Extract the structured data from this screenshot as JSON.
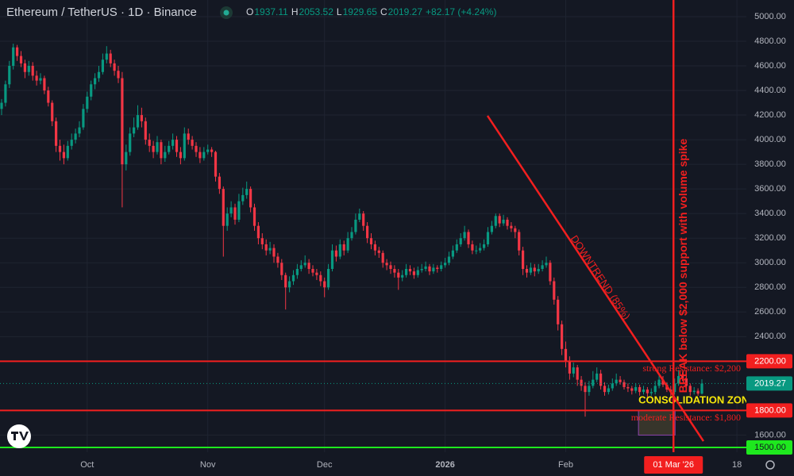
{
  "header": {
    "symbol": "Ethereum / TetherUS · 1D · Binance",
    "o_label": "O",
    "open": 1937.11,
    "h_label": "H",
    "high": 2053.52,
    "l_label": "L",
    "low": 1929.65,
    "c_label": "C",
    "close": 2019.27,
    "change": "+82.17 (+4.24%)"
  },
  "chart_data": {
    "type": "candlestick",
    "colors": {
      "up": "#089981",
      "down": "#f23645"
    },
    "xlim": [
      -0.41,
      191.43
    ],
    "ylim": [
      1461,
      5135
    ],
    "yticks": [
      {
        "value": 1600,
        "label": "1600.00"
      },
      {
        "value": 2400,
        "label": "2400.00"
      },
      {
        "value": 2600,
        "label": "2600.00"
      },
      {
        "value": 2800,
        "label": "2800.00"
      },
      {
        "value": 3000,
        "label": "3000.00"
      },
      {
        "value": 3200,
        "label": "3200.00"
      },
      {
        "value": 3400,
        "label": "3400.00"
      },
      {
        "value": 3600,
        "label": "3600.00"
      },
      {
        "value": 3800,
        "label": "3800.00"
      },
      {
        "value": 4000,
        "label": "4000.00"
      },
      {
        "value": 4200,
        "label": "4200.00"
      },
      {
        "value": 4400,
        "label": "4400.00"
      },
      {
        "value": 4600,
        "label": "4600.00"
      },
      {
        "value": 4800,
        "label": "4800.00"
      },
      {
        "value": 5000,
        "label": "5000.00"
      }
    ],
    "time_labels": [
      {
        "index": 22,
        "label": "Oct"
      },
      {
        "index": 53,
        "label": "Nov"
      },
      {
        "index": 83,
        "label": "Dec"
      },
      {
        "index": 114,
        "label": "2026"
      },
      {
        "index": 145,
        "label": "Feb"
      },
      {
        "index": 189,
        "label": "18"
      }
    ],
    "grid": true,
    "last_price": 2019.27,
    "levels": [
      {
        "price": 2200,
        "price_label": "2200.00",
        "color": "#f21f1f",
        "text": "strong Resistance: $2,200"
      },
      {
        "price": 1800,
        "price_label": "1800.00",
        "color": "#f21f1f",
        "text": "moderate Resistance: $1,800"
      },
      {
        "price": 1500,
        "price_label": "1500.00",
        "color": "#1ee81e"
      }
    ],
    "trendline": {
      "from": [
        124.9,
        4194
      ],
      "to": [
        180.4,
        1551
      ],
      "color": "#f21f1f",
      "text": "DOWNTREND (85%)"
    },
    "vline": {
      "index": 172.7,
      "label": "01 Mar '26",
      "color": "#f21f1f",
      "text": "BREAK below $2,000 support with volume spike"
    },
    "zone": {
      "from": 163.7,
      "to": 173.1,
      "low": 1600,
      "high": 1800,
      "text_price": 1880,
      "color": "#f5e60a",
      "text": "CONSOLIDATION ZONE"
    },
    "candles": [
      [
        4250,
        4330,
        4200,
        4300
      ],
      [
        4300,
        4480,
        4270,
        4450
      ],
      [
        4450,
        4640,
        4420,
        4600
      ],
      [
        4600,
        4780,
        4570,
        4750
      ],
      [
        4750,
        4770,
        4640,
        4680
      ],
      [
        4680,
        4720,
        4590,
        4620
      ],
      [
        4620,
        4650,
        4500,
        4550
      ],
      [
        4550,
        4640,
        4520,
        4600
      ],
      [
        4600,
        4630,
        4480,
        4520
      ],
      [
        4520,
        4560,
        4440,
        4480
      ],
      [
        4480,
        4540,
        4450,
        4500
      ],
      [
        4500,
        4520,
        4370,
        4400
      ],
      [
        4400,
        4430,
        4270,
        4300
      ],
      [
        4300,
        4320,
        4110,
        4150
      ],
      [
        4150,
        4180,
        3900,
        3950
      ],
      [
        3950,
        4000,
        3830,
        3900
      ],
      [
        3900,
        3960,
        3800,
        3850
      ],
      [
        3850,
        3990,
        3830,
        3950
      ],
      [
        3950,
        4050,
        3920,
        4000
      ],
      [
        4000,
        4090,
        3970,
        4050
      ],
      [
        4050,
        4150,
        4020,
        4100
      ],
      [
        4100,
        4290,
        4080,
        4250
      ],
      [
        4250,
        4390,
        4220,
        4350
      ],
      [
        4350,
        4480,
        4320,
        4450
      ],
      [
        4450,
        4540,
        4410,
        4500
      ],
      [
        4500,
        4600,
        4470,
        4550
      ],
      [
        4550,
        4700,
        4530,
        4650
      ],
      [
        4650,
        4760,
        4620,
        4700
      ],
      [
        4700,
        4730,
        4590,
        4620
      ],
      [
        4620,
        4650,
        4520,
        4560
      ],
      [
        4560,
        4600,
        4460,
        4500
      ],
      [
        4500,
        4550,
        3450,
        3800
      ],
      [
        3800,
        3960,
        3750,
        3900
      ],
      [
        3900,
        4100,
        3870,
        4050
      ],
      [
        4050,
        4180,
        4020,
        4100
      ],
      [
        4100,
        4280,
        4080,
        4200
      ],
      [
        4200,
        4260,
        4100,
        4150
      ],
      [
        4150,
        4180,
        3960,
        4000
      ],
      [
        4000,
        4050,
        3900,
        3950
      ],
      [
        3950,
        3990,
        3850,
        3900
      ],
      [
        3900,
        4030,
        3880,
        3980
      ],
      [
        3980,
        4000,
        3800,
        3850
      ],
      [
        3850,
        3950,
        3820,
        3900
      ],
      [
        3900,
        3990,
        3880,
        3950
      ],
      [
        3950,
        4050,
        3920,
        4000
      ],
      [
        4000,
        4030,
        3860,
        3900
      ],
      [
        3900,
        3940,
        3800,
        3850
      ],
      [
        3850,
        4100,
        3830,
        4050
      ],
      [
        4050,
        4090,
        3960,
        4000
      ],
      [
        4000,
        4030,
        3920,
        3950
      ],
      [
        3950,
        3980,
        3860,
        3900
      ],
      [
        3900,
        3940,
        3810,
        3850
      ],
      [
        3850,
        3940,
        3830,
        3900
      ],
      [
        3900,
        3960,
        3880,
        3920
      ],
      [
        3920,
        3940,
        3860,
        3900
      ],
      [
        3900,
        3910,
        3660,
        3700
      ],
      [
        3700,
        3730,
        3560,
        3600
      ],
      [
        3600,
        3620,
        3050,
        3300
      ],
      [
        3300,
        3450,
        3260,
        3400
      ],
      [
        3400,
        3500,
        3370,
        3450
      ],
      [
        3450,
        3480,
        3310,
        3350
      ],
      [
        3350,
        3560,
        3330,
        3500
      ],
      [
        3500,
        3610,
        3470,
        3550
      ],
      [
        3550,
        3660,
        3520,
        3600
      ],
      [
        3600,
        3620,
        3410,
        3450
      ],
      [
        3450,
        3480,
        3260,
        3300
      ],
      [
        3300,
        3330,
        3150,
        3200
      ],
      [
        3200,
        3240,
        3110,
        3150
      ],
      [
        3150,
        3190,
        3060,
        3100
      ],
      [
        3100,
        3170,
        3070,
        3120
      ],
      [
        3120,
        3150,
        3000,
        3050
      ],
      [
        3050,
        3080,
        2960,
        3000
      ],
      [
        3000,
        3030,
        2860,
        2900
      ],
      [
        2900,
        2920,
        2620,
        2800
      ],
      [
        2800,
        2890,
        2760,
        2850
      ],
      [
        2850,
        2940,
        2820,
        2900
      ],
      [
        2900,
        2990,
        2870,
        2950
      ],
      [
        2950,
        3020,
        2930,
        2980
      ],
      [
        2980,
        3060,
        2960,
        3000
      ],
      [
        3000,
        3030,
        2910,
        2950
      ],
      [
        2950,
        2980,
        2890,
        2920
      ],
      [
        2920,
        2950,
        2860,
        2900
      ],
      [
        2900,
        2930,
        2810,
        2850
      ],
      [
        2850,
        2880,
        2720,
        2800
      ],
      [
        2800,
        2990,
        2780,
        2950
      ],
      [
        2950,
        3150,
        2930,
        3100
      ],
      [
        3100,
        3140,
        3010,
        3050
      ],
      [
        3050,
        3190,
        3030,
        3150
      ],
      [
        3150,
        3180,
        3060,
        3100
      ],
      [
        3100,
        3250,
        3080,
        3200
      ],
      [
        3200,
        3290,
        3180,
        3250
      ],
      [
        3250,
        3400,
        3230,
        3350
      ],
      [
        3350,
        3440,
        3330,
        3400
      ],
      [
        3400,
        3420,
        3260,
        3300
      ],
      [
        3300,
        3330,
        3160,
        3200
      ],
      [
        3200,
        3240,
        3110,
        3150
      ],
      [
        3150,
        3180,
        3060,
        3100
      ],
      [
        3100,
        3130,
        3040,
        3080
      ],
      [
        3080,
        3100,
        2960,
        3000
      ],
      [
        3000,
        3030,
        2940,
        2980
      ],
      [
        2980,
        3010,
        2910,
        2950
      ],
      [
        2950,
        2980,
        2880,
        2920
      ],
      [
        2920,
        2950,
        2780,
        2880
      ],
      [
        2880,
        2940,
        2850,
        2900
      ],
      [
        2900,
        2990,
        2880,
        2950
      ],
      [
        2950,
        2980,
        2900,
        2930
      ],
      [
        2930,
        2960,
        2870,
        2900
      ],
      [
        2900,
        2970,
        2880,
        2940
      ],
      [
        2940,
        2990,
        2920,
        2950
      ],
      [
        2950,
        3010,
        2930,
        2970
      ],
      [
        2970,
        2990,
        2900,
        2930
      ],
      [
        2930,
        2990,
        2910,
        2960
      ],
      [
        2960,
        2980,
        2920,
        2950
      ],
      [
        2950,
        3010,
        2930,
        2980
      ],
      [
        2980,
        3040,
        2960,
        3000
      ],
      [
        3000,
        3090,
        2980,
        3050
      ],
      [
        3050,
        3140,
        3030,
        3100
      ],
      [
        3100,
        3190,
        3080,
        3150
      ],
      [
        3150,
        3240,
        3130,
        3200
      ],
      [
        3200,
        3300,
        3180,
        3250
      ],
      [
        3250,
        3270,
        3120,
        3150
      ],
      [
        3150,
        3180,
        3070,
        3100
      ],
      [
        3100,
        3140,
        3070,
        3100
      ],
      [
        3100,
        3160,
        3080,
        3120
      ],
      [
        3120,
        3190,
        3100,
        3150
      ],
      [
        3150,
        3290,
        3130,
        3250
      ],
      [
        3250,
        3340,
        3230,
        3300
      ],
      [
        3300,
        3400,
        3280,
        3380
      ],
      [
        3380,
        3400,
        3290,
        3320
      ],
      [
        3320,
        3390,
        3300,
        3350
      ],
      [
        3350,
        3370,
        3270,
        3300
      ],
      [
        3300,
        3330,
        3250,
        3280
      ],
      [
        3280,
        3300,
        3200,
        3250
      ],
      [
        3250,
        3270,
        3060,
        3100
      ],
      [
        3100,
        3130,
        2900,
        2950
      ],
      [
        2950,
        2980,
        2880,
        2920
      ],
      [
        2920,
        3000,
        2900,
        2960
      ],
      [
        2960,
        2990,
        2890,
        2930
      ],
      [
        2930,
        2990,
        2910,
        2950
      ],
      [
        2950,
        3020,
        2930,
        2980
      ],
      [
        2980,
        3050,
        2960,
        3000
      ],
      [
        3000,
        3020,
        2820,
        2850
      ],
      [
        2850,
        2880,
        2660,
        2700
      ],
      [
        2700,
        2730,
        2450,
        2500
      ],
      [
        2500,
        2530,
        2250,
        2300
      ],
      [
        2300,
        2360,
        2150,
        2200
      ],
      [
        2200,
        2240,
        2050,
        2100
      ],
      [
        2100,
        2190,
        2070,
        2150
      ],
      [
        2150,
        2170,
        2000,
        2050
      ],
      [
        2050,
        2080,
        1960,
        2000
      ],
      [
        2000,
        2030,
        1750,
        1950
      ],
      [
        1950,
        2040,
        1920,
        2000
      ],
      [
        2000,
        2120,
        1980,
        2050
      ],
      [
        2050,
        2150,
        2030,
        2100
      ],
      [
        2100,
        2130,
        1970,
        2000
      ],
      [
        2000,
        2030,
        1920,
        1950
      ],
      [
        1950,
        2010,
        1930,
        1980
      ],
      [
        1980,
        2060,
        1960,
        2020
      ],
      [
        2020,
        2100,
        2000,
        2050
      ],
      [
        2050,
        2080,
        2010,
        2030
      ],
      [
        2030,
        2050,
        1970,
        1990
      ],
      [
        1990,
        2020,
        1950,
        1980
      ],
      [
        1980,
        2000,
        1930,
        1960
      ],
      [
        1960,
        2020,
        1940,
        1990
      ],
      [
        1990,
        2010,
        1920,
        1950
      ],
      [
        1950,
        2000,
        1930,
        1970
      ],
      [
        1970,
        1990,
        1910,
        1940
      ],
      [
        1940,
        1980,
        1920,
        1950
      ],
      [
        1950,
        2040,
        1930,
        2000
      ],
      [
        2000,
        2100,
        1980,
        2050
      ],
      [
        2050,
        2080,
        1990,
        2010
      ],
      [
        2010,
        2030,
        1950,
        1970
      ],
      [
        1970,
        2000,
        1880,
        1950
      ],
      [
        1950,
        2060,
        1930,
        2020
      ],
      [
        2020,
        2130,
        2000,
        2080
      ],
      [
        2080,
        2110,
        2040,
        2060
      ],
      [
        2060,
        2080,
        1980,
        2000
      ],
      [
        2000,
        2020,
        1920,
        1950
      ],
      [
        1950,
        1990,
        1930,
        1960
      ],
      [
        1960,
        1980,
        1920,
        1937.1
      ],
      [
        1937.11,
        2053.52,
        1929.65,
        2019.27
      ]
    ]
  }
}
